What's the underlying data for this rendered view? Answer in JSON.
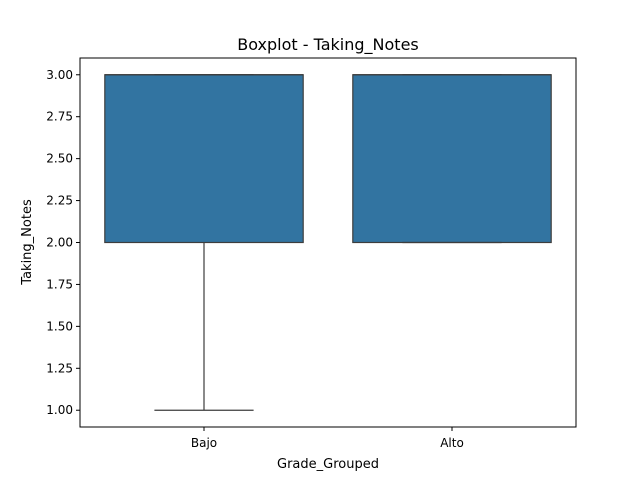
{
  "chart_data": {
    "type": "boxplot",
    "title": "Boxplot - Taking_Notes",
    "xlabel": "Grade_Grouped",
    "ylabel": "Taking_Notes",
    "ylim": [
      0.9,
      3.1
    ],
    "yticks": [
      1.0,
      1.25,
      1.5,
      1.75,
      2.0,
      2.25,
      2.5,
      2.75,
      3.0
    ],
    "ytick_labels": [
      "1.00",
      "1.25",
      "1.50",
      "1.75",
      "2.00",
      "2.25",
      "2.50",
      "2.75",
      "3.00"
    ],
    "grid": false,
    "box_color": "#3274a1",
    "line_color": "#3d3d3d",
    "categories": [
      "Bajo",
      "Alto"
    ],
    "boxes": [
      {
        "category": "Bajo",
        "whisker_low": 1.0,
        "q1": 2.0,
        "median": 3.0,
        "q3": 3.0,
        "whisker_high": 3.0
      },
      {
        "category": "Alto",
        "whisker_low": 2.0,
        "q1": 2.0,
        "median": 3.0,
        "q3": 3.0,
        "whisker_high": 3.0
      }
    ]
  }
}
